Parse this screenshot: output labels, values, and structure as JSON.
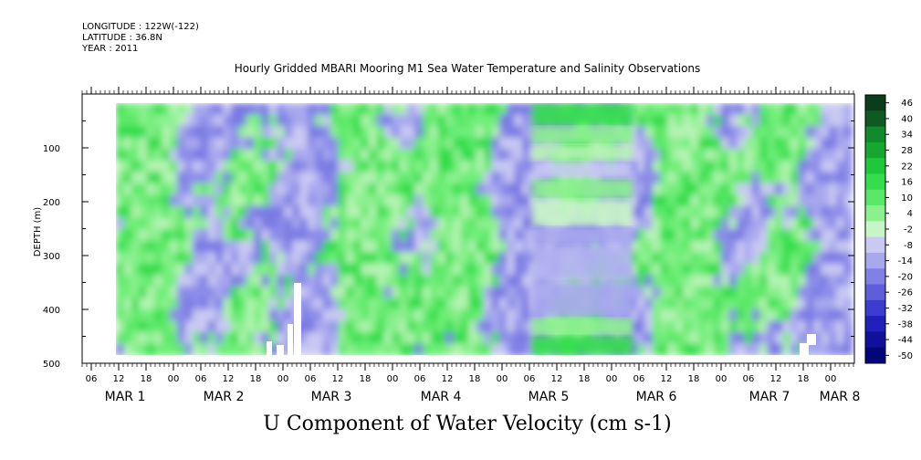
{
  "header": {
    "longitude": "LONGITUDE : 122W(-122)",
    "latitude": "LATITUDE : 36.8N",
    "year": "YEAR : 2011"
  },
  "chart_data": {
    "type": "heatmap",
    "title": "Hourly Gridded MBARI Mooring M1 Sea Water Temperature and Salinity Observations",
    "variable_label": "U Component of Water Velocity (cm s-1)",
    "ylabel": "DEPTH (m)",
    "ylim": [
      500,
      0
    ],
    "yticks": [
      100,
      200,
      300,
      400,
      500
    ],
    "x_hour_ticks": [
      "06",
      "12",
      "18",
      "00",
      "06",
      "12",
      "18",
      "00",
      "06",
      "12",
      "18",
      "00",
      "06",
      "12",
      "18",
      "00",
      "06",
      "12",
      "18",
      "00",
      "06",
      "12",
      "18",
      "00",
      "06",
      "12",
      "18",
      "00"
    ],
    "x_day_labels": [
      "MAR  1",
      "MAR  2",
      "MAR  3",
      "MAR  4",
      "MAR  5",
      "MAR  6",
      "MAR  7",
      "MAR  8"
    ],
    "colorbar": {
      "levels": [
        46,
        40,
        34,
        28,
        22,
        16,
        10,
        4,
        -2,
        -8,
        -14,
        -20,
        -26,
        -32,
        -38,
        -44,
        -50
      ],
      "colors": [
        "#0b3d1a",
        "#0e5a22",
        "#108a2a",
        "#14a830",
        "#1ec83a",
        "#33dd4c",
        "#5be868",
        "#8cf08f",
        "#c8f5c6",
        "#c9c9f3",
        "#a8a8ee",
        "#8080e6",
        "#5e5edc",
        "#3c3cd0",
        "#2020bb",
        "#10109a",
        "#05057a"
      ]
    },
    "field_range_note": ""
  }
}
